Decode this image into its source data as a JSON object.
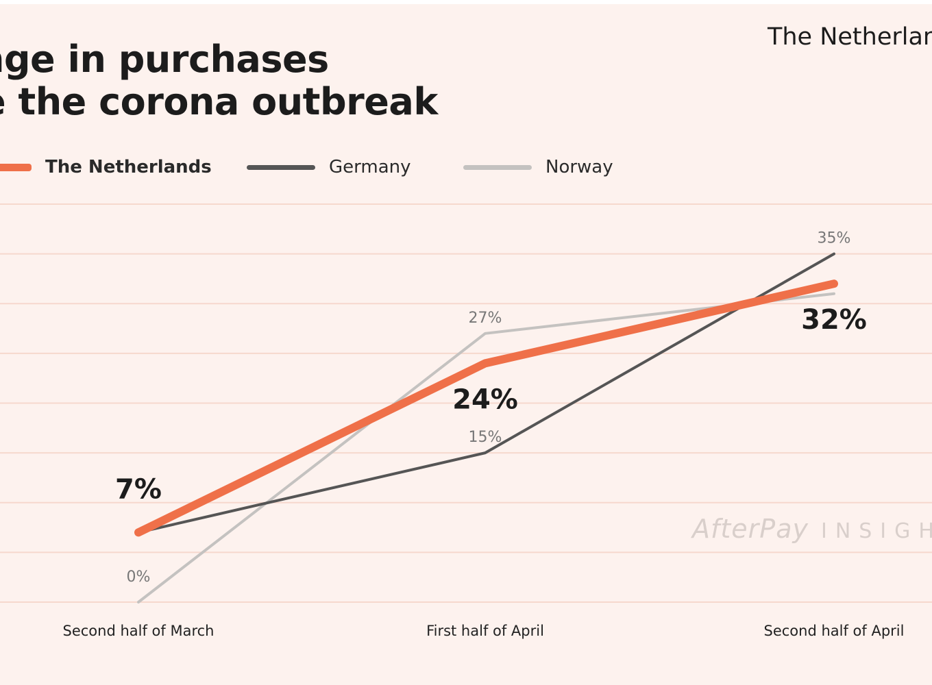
{
  "header": {
    "title_line1": "ange in purchases",
    "title_line2": "e the corona outbreak",
    "country": "The Netherlands"
  },
  "watermark": {
    "brand": "AfterPay",
    "suffix": "INSIGHTS"
  },
  "colors": {
    "background": "#fdf2ee",
    "grid": "#f6d8cd",
    "netherlands": "#ef7049",
    "germany": "#555555",
    "norway": "#c4c2c0",
    "text": "#1c1c1c"
  },
  "chart_data": {
    "type": "line",
    "title": "Change in purchases since the corona outbreak",
    "categories": [
      "Second half of March",
      "First half of April",
      "Second half of April"
    ],
    "ylim": [
      0,
      40
    ],
    "grid": true,
    "legend": "top-left",
    "series": [
      {
        "name": "The Netherlands",
        "values": [
          7,
          24,
          32
        ],
        "labels": [
          "7%",
          "24%",
          "32%"
        ],
        "emphasis": true
      },
      {
        "name": "Germany",
        "values": [
          7,
          15,
          35
        ],
        "labels": [
          "",
          "15%",
          "35%"
        ],
        "emphasis": false
      },
      {
        "name": "Norway",
        "values": [
          0,
          27,
          31
        ],
        "labels": [
          "0%",
          "27%",
          ""
        ],
        "emphasis": false
      }
    ]
  }
}
